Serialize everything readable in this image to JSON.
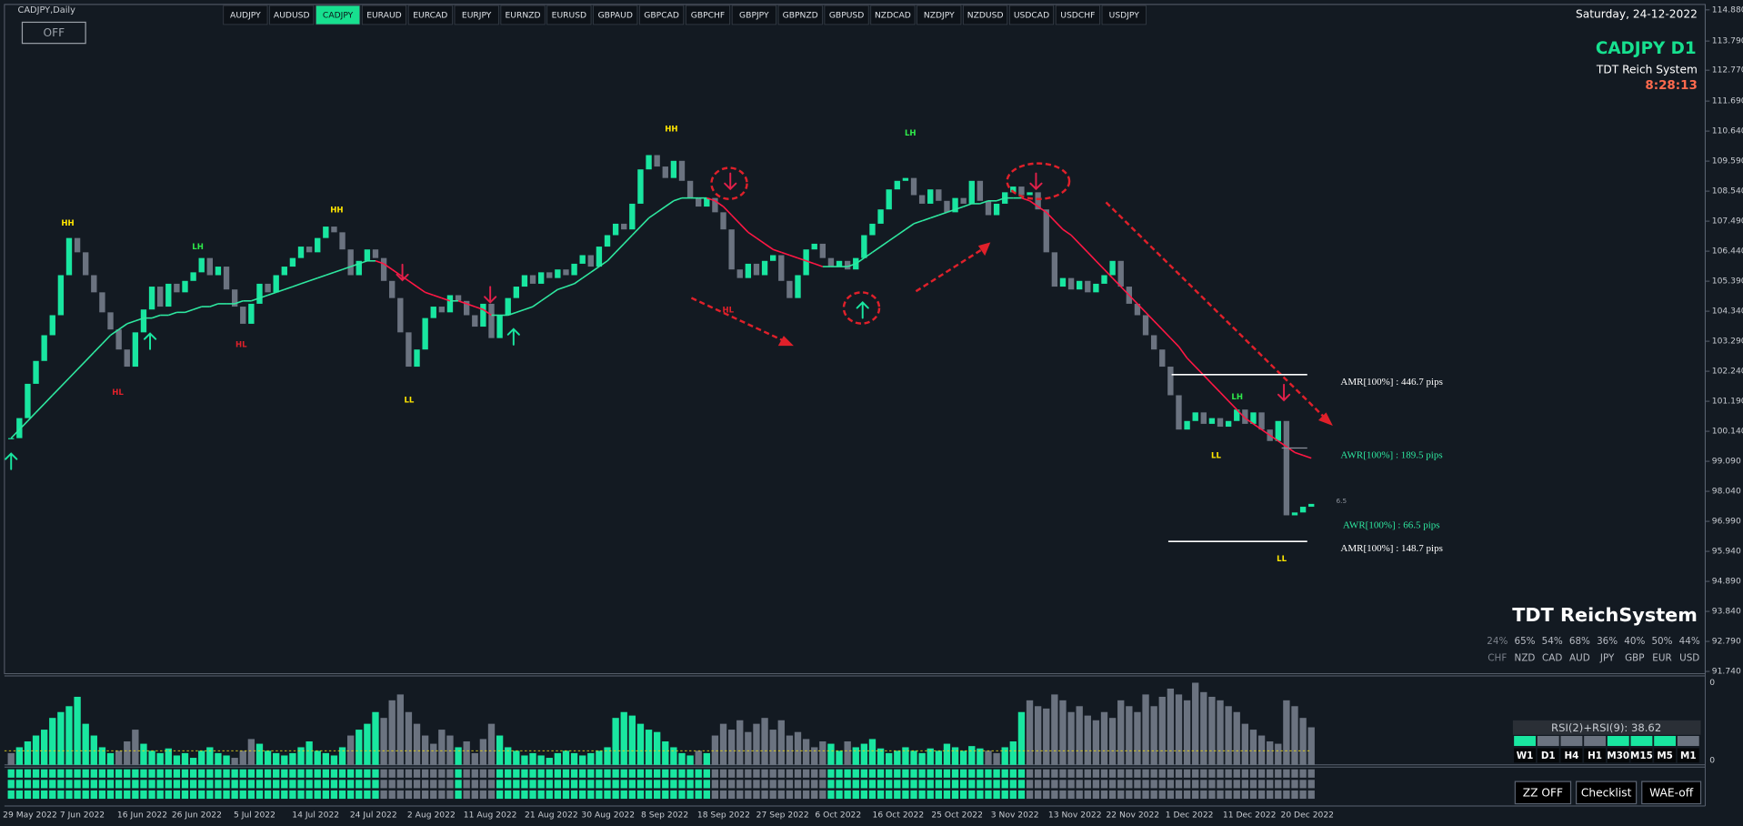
{
  "window_title": "CADJPY,Daily",
  "off_button": "OFF",
  "symbols": [
    "AUDJPY",
    "AUDUSD",
    "CADJPY",
    "EURAUD",
    "EURCAD",
    "EURJPY",
    "EURNZD",
    "EURUSD",
    "GBPAUD",
    "GBPCAD",
    "GBPCHF",
    "GBPJPY",
    "GBPNZD",
    "GBPUSD",
    "NZDCAD",
    "NZDJPY",
    "NZDUSD",
    "USDCAD",
    "USDCHF",
    "USDJPY"
  ],
  "active_symbol": "CADJPY",
  "date_time": "Saturday, 24-12-2022",
  "info": {
    "symbol": "CADJPY D1",
    "system": "TDT Reich System",
    "timer": "8:28:13"
  },
  "brand": "TDT ReichSystem",
  "strength": {
    "percents": [
      "24%",
      "65%",
      "54%",
      "68%",
      "36%",
      "40%",
      "50%",
      "44%"
    ],
    "currencies": [
      "CHF",
      "NZD",
      "CAD",
      "AUD",
      "JPY",
      "GBP",
      "EUR",
      "USD"
    ]
  },
  "range_labels": [
    "AMR[100%] : 446.7 pips",
    "AWR[100%] : 189.5 pips",
    "AWR[100%] : 66.5 pips",
    "AMR[100%] : 148.7 pips"
  ],
  "small_label": "6.5",
  "swing_labels": [
    "HH",
    "HL",
    "LH",
    "HH",
    "HL",
    "LL",
    "HH",
    "HL",
    "LH",
    "LH",
    "LL",
    "LL"
  ],
  "chart_data": {
    "type": "candlestick",
    "close": [
      99.9,
      100.6,
      101.8,
      102.6,
      103.5,
      104.2,
      105.6,
      106.9,
      106.4,
      105.6,
      105.0,
      104.3,
      103.7,
      103.0,
      102.4,
      103.6,
      104.4,
      105.2,
      104.5,
      105.3,
      105.0,
      105.4,
      105.7,
      106.2,
      105.6,
      105.9,
      105.1,
      104.5,
      103.9,
      104.6,
      105.3,
      105.0,
      105.6,
      105.9,
      106.2,
      106.6,
      106.4,
      106.9,
      107.3,
      107.1,
      106.5,
      105.6,
      106.1,
      106.5,
      106.2,
      105.4,
      104.8,
      103.6,
      102.4,
      103.0,
      104.1,
      104.5,
      104.3,
      104.9,
      104.7,
      104.2,
      103.8,
      104.6,
      103.4,
      104.2,
      104.8,
      105.2,
      105.6,
      105.3,
      105.7,
      105.5,
      105.8,
      105.6,
      106.0,
      106.3,
      105.9,
      106.6,
      107.0,
      107.4,
      107.2,
      108.1,
      109.3,
      109.8,
      109.4,
      109.0,
      109.6,
      108.9,
      108.3,
      108.0,
      108.3,
      107.8,
      107.2,
      105.8,
      105.5,
      106.0,
      105.6,
      106.1,
      106.3,
      105.4,
      104.8,
      105.6,
      106.5,
      106.7,
      106.2,
      105.9,
      106.1,
      105.8,
      106.2,
      107.0,
      107.4,
      107.9,
      108.6,
      108.9,
      109.0,
      108.4,
      108.1,
      108.6,
      108.2,
      107.8,
      108.3,
      108.1,
      108.9,
      108.2,
      107.7,
      108.1,
      108.5,
      108.7,
      108.4,
      108.5,
      107.9,
      106.4,
      105.2,
      105.5,
      105.1,
      105.4,
      105.0,
      105.3,
      105.6,
      106.1,
      105.2,
      104.6,
      104.2,
      103.5,
      103.0,
      102.4,
      101.4,
      100.2,
      100.5,
      100.8,
      100.4,
      100.6,
      100.3,
      100.5,
      100.9,
      100.4,
      100.8,
      100.2,
      99.8,
      100.5,
      97.2,
      97.3,
      97.5,
      97.6
    ],
    "ma": [
      99.9,
      100.2,
      100.5,
      100.8,
      101.1,
      101.4,
      101.7,
      102.0,
      102.3,
      102.6,
      102.9,
      103.2,
      103.5,
      103.7,
      103.9,
      104.0,
      104.1,
      104.1,
      104.2,
      104.2,
      104.3,
      104.3,
      104.4,
      104.5,
      104.5,
      104.6,
      104.6,
      104.6,
      104.7,
      104.7,
      104.8,
      104.9,
      105.0,
      105.1,
      105.2,
      105.3,
      105.4,
      105.5,
      105.6,
      105.7,
      105.8,
      105.9,
      106.0,
      106.1,
      106.1,
      106.0,
      105.8,
      105.6,
      105.4,
      105.2,
      105.0,
      104.9,
      104.8,
      104.7,
      104.7,
      104.6,
      104.5,
      104.4,
      104.2,
      104.2,
      104.2,
      104.3,
      104.4,
      104.5,
      104.7,
      104.9,
      105.1,
      105.2,
      105.3,
      105.5,
      105.7,
      105.9,
      106.1,
      106.4,
      106.7,
      107.0,
      107.3,
      107.6,
      107.8,
      108.0,
      108.2,
      108.3,
      108.3,
      108.3,
      108.3,
      108.2,
      108.0,
      107.7,
      107.4,
      107.1,
      106.9,
      106.7,
      106.5,
      106.4,
      106.3,
      106.2,
      106.1,
      106.0,
      105.9,
      105.9,
      105.9,
      105.9,
      106.0,
      106.2,
      106.4,
      106.6,
      106.8,
      107.0,
      107.2,
      107.4,
      107.5,
      107.6,
      107.7,
      107.8,
      107.9,
      108.0,
      108.1,
      108.1,
      108.2,
      108.2,
      108.3,
      108.3,
      108.3,
      108.2,
      108.0,
      107.8,
      107.5,
      107.2,
      107.0,
      106.7,
      106.4,
      106.1,
      105.8,
      105.5,
      105.2,
      104.9,
      104.6,
      104.3,
      104.0,
      103.7,
      103.4,
      103.1,
      102.7,
      102.4,
      102.1,
      101.8,
      101.5,
      101.2,
      100.9,
      100.6,
      100.4,
      100.2,
      100.0,
      99.8,
      99.6,
      99.4,
      99.3,
      99.2
    ],
    "up_color": "#19e6a0",
    "down_color": "#6b7380",
    "ma_up_color": "#2ee8a0",
    "ma_down_color": "#ff1744",
    "ylim": [
      91.66,
      115.07
    ],
    "yticks": [
      {
        "value": 114.88,
        "label": "114.880"
      },
      {
        "value": 113.79,
        "label": "113.790"
      },
      {
        "value": 112.77,
        "label": "112.770"
      },
      {
        "value": 111.69,
        "label": "111.690"
      },
      {
        "value": 110.64,
        "label": "110.640"
      },
      {
        "value": 109.59,
        "label": "109.590"
      },
      {
        "value": 108.54,
        "label": "108.540"
      },
      {
        "value": 107.49,
        "label": "107.490"
      },
      {
        "value": 106.44,
        "label": "106.440"
      },
      {
        "value": 105.39,
        "label": "105.390"
      },
      {
        "value": 104.34,
        "label": "104.340"
      },
      {
        "value": 103.29,
        "label": "103.290"
      },
      {
        "value": 102.24,
        "label": "102.240"
      },
      {
        "value": 101.19,
        "label": "101.190"
      },
      {
        "value": 100.14,
        "label": "100.140"
      },
      {
        "value": 99.09,
        "label": "99.090"
      },
      {
        "value": 98.04,
        "label": "98.040"
      },
      {
        "value": 96.99,
        "label": "96.990"
      },
      {
        "value": 95.94,
        "label": "95.940"
      },
      {
        "value": 94.89,
        "label": "94.890"
      },
      {
        "value": 93.84,
        "label": "93.840"
      },
      {
        "value": 92.79,
        "label": "92.790"
      },
      {
        "value": 91.74,
        "label": "91.740"
      }
    ],
    "x_labels": [
      "29 May 2022",
      "7 Jun 2022",
      "16 Jun 2022",
      "26 Jun 2022",
      "5 Jul 2022",
      "14 Jul 2022",
      "24 Jul 2022",
      "2 Aug 2022",
      "11 Aug 2022",
      "21 Aug 2022",
      "30 Aug 2022",
      "8 Sep 2022",
      "18 Sep 2022",
      "27 Sep 2022",
      "6 Oct 2022",
      "16 Oct 2022",
      "25 Oct 2022",
      "3 Nov 2022",
      "13 Nov 2022",
      "22 Nov 2022",
      "1 Dec 2022",
      "11 Dec 2022",
      "20 Dec 2022"
    ],
    "histogram": {
      "values": [
        10,
        15,
        20,
        25,
        30,
        40,
        45,
        50,
        58,
        35,
        25,
        15,
        10,
        12,
        20,
        30,
        18,
        12,
        10,
        14,
        8,
        10,
        6,
        12,
        15,
        10,
        8,
        6,
        12,
        22,
        18,
        12,
        10,
        8,
        10,
        15,
        20,
        12,
        10,
        8,
        15,
        25,
        30,
        35,
        45,
        40,
        55,
        60,
        45,
        35,
        25,
        18,
        30,
        25,
        15,
        20,
        10,
        22,
        35,
        25,
        15,
        12,
        8,
        10,
        8,
        6,
        10,
        12,
        10,
        8,
        10,
        12,
        15,
        40,
        45,
        42,
        35,
        30,
        28,
        20,
        15,
        10,
        8,
        12,
        10,
        25,
        35,
        30,
        38,
        28,
        35,
        40,
        30,
        38,
        25,
        28,
        22,
        15,
        20,
        18,
        12,
        20,
        15,
        18,
        22,
        14,
        10,
        12,
        15,
        12,
        10,
        14,
        12,
        18,
        15,
        12,
        16,
        14,
        12,
        10,
        15,
        20,
        45,
        55,
        50,
        48,
        60,
        55,
        45,
        50,
        42,
        38,
        45,
        40,
        55,
        50,
        45,
        60,
        50,
        58,
        65,
        60,
        55,
        70,
        62,
        58,
        55,
        50,
        45,
        35,
        30,
        25,
        20,
        18,
        55,
        50,
        40,
        32
      ],
      "ylim": [
        0,
        72
      ],
      "level": 12,
      "axis_labels": [
        "0",
        "0"
      ]
    }
  },
  "rsi_panel": {
    "title": "RSI(2)+RSI(9): 38.62",
    "timeframes": [
      "W1",
      "D1",
      "H4",
      "H1",
      "M30",
      "M15",
      "M5",
      "M1"
    ],
    "colors": [
      "#19e6a0",
      "#6b7380",
      "#6b7380",
      "#6b7380",
      "#19e6a0",
      "#19e6a0",
      "#19e6a0",
      "#6b7380"
    ]
  },
  "buttons": [
    "ZZ OFF",
    "Checklist",
    "WAE-off"
  ]
}
